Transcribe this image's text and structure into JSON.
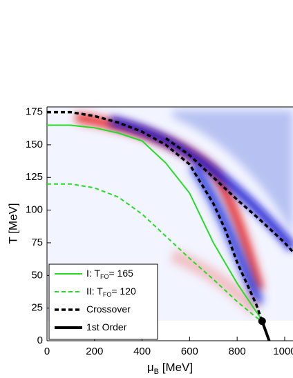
{
  "chart_data": {
    "type": "line",
    "xlabel": "μ",
    "xlabel_sub": "B",
    "xlabel_suffix": " [MeV]",
    "ylabel": "T [MeV]",
    "xlim": [
      0,
      1035
    ],
    "ylim": [
      0,
      179
    ],
    "xticks": [
      0,
      200,
      400,
      600,
      800,
      1000
    ],
    "yticks": [
      0,
      25,
      50,
      75,
      100,
      125,
      150,
      175
    ],
    "legend": "lower left",
    "series": [
      {
        "name": "I: T",
        "name_sub": "FO",
        "name_suffix": "= 165",
        "color": "#22dd22",
        "style": "solid",
        "width": 2,
        "x": [
          0,
          100,
          200,
          300,
          400,
          500,
          600,
          700,
          800,
          870,
          905
        ],
        "values": [
          165,
          165,
          163,
          159,
          153,
          136,
          113,
          75,
          44,
          25,
          16
        ]
      },
      {
        "name": "II: T",
        "name_sub": "FO",
        "name_suffix": "= 120",
        "color": "#22dd22",
        "style": "dashed",
        "width": 2,
        "x": [
          0,
          100,
          200,
          300,
          400,
          500,
          600,
          700,
          800,
          880,
          905
        ],
        "values": [
          120,
          120,
          117,
          110,
          97,
          80,
          63,
          47,
          30,
          18,
          15
        ]
      },
      {
        "name": "Crossover",
        "color": "#000000",
        "style": "dashed",
        "width": 3.5,
        "x": [
          0,
          100,
          200,
          300,
          400,
          500,
          600,
          700,
          750,
          800,
          850,
          880,
          905,
          450,
          500,
          600,
          700,
          800,
          900,
          1000,
          1035
        ],
        "values": [
          175,
          175,
          172,
          167,
          160,
          150,
          135,
          105,
          85,
          60,
          40,
          28,
          15,
          null,
          155,
          142,
          125,
          108,
          92,
          75,
          68
        ]
      },
      {
        "name": "1st Order",
        "color": "#000000",
        "style": "solid",
        "width": 4,
        "x": [
          905,
          935
        ],
        "values": [
          15,
          0
        ]
      }
    ],
    "critical_point": {
      "x": 905,
      "y": 15
    }
  }
}
